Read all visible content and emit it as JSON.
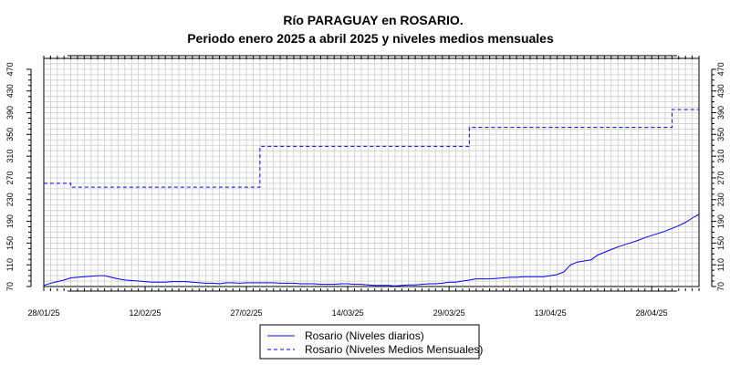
{
  "chart_data": {
    "type": "line",
    "title": "Río PARAGUAY en ROSARIO.",
    "subtitle": "Periodo enero 2025 a abril 2025 y niveles medios mensuales",
    "xlabel": "",
    "ylabel": "",
    "x_range": [
      "2025-01-28",
      "2025-05-05"
    ],
    "ylim": [
      70,
      490
    ],
    "grid": true,
    "x_tick_labels": [
      "28/01/25",
      "12/02/25",
      "27/02/25",
      "14/03/25",
      "29/03/25",
      "13/04/25",
      "28/04/25"
    ],
    "y_ticks": [
      70,
      110,
      150,
      190,
      230,
      270,
      310,
      350,
      390,
      430,
      470
    ],
    "legend_position": "bottom",
    "series": [
      {
        "name": "Rosario (Niveles diarios)",
        "style": "solid",
        "color": "#0000ff",
        "points": [
          [
            "2025-01-28",
            72
          ],
          [
            "2025-01-29",
            76
          ],
          [
            "2025-01-30",
            79
          ],
          [
            "2025-01-31",
            82
          ],
          [
            "2025-02-01",
            86
          ],
          [
            "2025-02-02",
            87
          ],
          [
            "2025-02-03",
            88
          ],
          [
            "2025-02-04",
            89
          ],
          [
            "2025-02-05",
            90
          ],
          [
            "2025-02-06",
            90
          ],
          [
            "2025-02-07",
            87
          ],
          [
            "2025-02-08",
            84
          ],
          [
            "2025-02-09",
            82
          ],
          [
            "2025-02-10",
            81
          ],
          [
            "2025-02-11",
            80
          ],
          [
            "2025-02-12",
            79
          ],
          [
            "2025-02-13",
            78
          ],
          [
            "2025-02-14",
            78
          ],
          [
            "2025-02-15",
            78
          ],
          [
            "2025-02-16",
            79
          ],
          [
            "2025-02-17",
            79
          ],
          [
            "2025-02-18",
            79
          ],
          [
            "2025-02-19",
            78
          ],
          [
            "2025-02-20",
            77
          ],
          [
            "2025-02-21",
            76
          ],
          [
            "2025-02-22",
            76
          ],
          [
            "2025-02-23",
            75
          ],
          [
            "2025-02-24",
            77
          ],
          [
            "2025-02-25",
            77
          ],
          [
            "2025-02-26",
            76
          ],
          [
            "2025-02-27",
            77
          ],
          [
            "2025-02-28",
            77
          ],
          [
            "2025-03-01",
            77
          ],
          [
            "2025-03-02",
            77
          ],
          [
            "2025-03-03",
            77
          ],
          [
            "2025-03-04",
            76
          ],
          [
            "2025-03-05",
            76
          ],
          [
            "2025-03-06",
            76
          ],
          [
            "2025-03-07",
            75
          ],
          [
            "2025-03-08",
            75
          ],
          [
            "2025-03-09",
            75
          ],
          [
            "2025-03-10",
            74
          ],
          [
            "2025-03-11",
            74
          ],
          [
            "2025-03-12",
            74
          ],
          [
            "2025-03-13",
            75
          ],
          [
            "2025-03-14",
            75
          ],
          [
            "2025-03-15",
            74
          ],
          [
            "2025-03-16",
            74
          ],
          [
            "2025-03-17",
            73
          ],
          [
            "2025-03-18",
            72
          ],
          [
            "2025-03-19",
            72
          ],
          [
            "2025-03-20",
            72
          ],
          [
            "2025-03-21",
            71
          ],
          [
            "2025-03-22",
            72
          ],
          [
            "2025-03-23",
            73
          ],
          [
            "2025-03-24",
            73
          ],
          [
            "2025-03-25",
            74
          ],
          [
            "2025-03-26",
            75
          ],
          [
            "2025-03-27",
            75
          ],
          [
            "2025-03-28",
            76
          ],
          [
            "2025-03-29",
            78
          ],
          [
            "2025-03-30",
            78
          ],
          [
            "2025-03-31",
            80
          ],
          [
            "2025-04-01",
            82
          ],
          [
            "2025-04-02",
            84
          ],
          [
            "2025-04-03",
            84
          ],
          [
            "2025-04-04",
            84
          ],
          [
            "2025-04-05",
            85
          ],
          [
            "2025-04-06",
            86
          ],
          [
            "2025-04-07",
            87
          ],
          [
            "2025-04-08",
            87
          ],
          [
            "2025-04-09",
            88
          ],
          [
            "2025-04-10",
            88
          ],
          [
            "2025-04-11",
            88
          ],
          [
            "2025-04-12",
            88
          ],
          [
            "2025-04-13",
            90
          ],
          [
            "2025-04-14",
            92
          ],
          [
            "2025-04-15",
            97
          ],
          [
            "2025-04-16",
            110
          ],
          [
            "2025-04-17",
            115
          ],
          [
            "2025-04-18",
            117
          ],
          [
            "2025-04-19",
            119
          ],
          [
            "2025-04-20",
            128
          ],
          [
            "2025-04-21",
            133
          ],
          [
            "2025-04-22",
            138
          ],
          [
            "2025-04-23",
            143
          ],
          [
            "2025-04-24",
            147
          ],
          [
            "2025-04-25",
            151
          ],
          [
            "2025-04-26",
            155
          ],
          [
            "2025-04-27",
            160
          ],
          [
            "2025-04-28",
            164
          ],
          [
            "2025-04-29",
            168
          ],
          [
            "2025-04-30",
            172
          ],
          [
            "2025-05-01",
            177
          ],
          [
            "2025-05-02",
            182
          ],
          [
            "2025-05-03",
            188
          ],
          [
            "2025-05-04",
            196
          ],
          [
            "2025-05-05",
            203
          ]
        ]
      },
      {
        "name": "Rosario (Niveles Medios Mensuales)",
        "style": "dashed",
        "color": "#0000ff",
        "steps": [
          {
            "from": "2025-01-28",
            "to": "2025-02-01",
            "value": 260
          },
          {
            "from": "2025-02-01",
            "to": "2025-03-01",
            "value": 253
          },
          {
            "from": "2025-03-01",
            "to": "2025-04-01",
            "value": 328
          },
          {
            "from": "2025-04-01",
            "to": "2025-05-01",
            "value": 363
          },
          {
            "from": "2025-05-01",
            "to": "2025-05-05",
            "value": 396
          }
        ]
      }
    ]
  }
}
